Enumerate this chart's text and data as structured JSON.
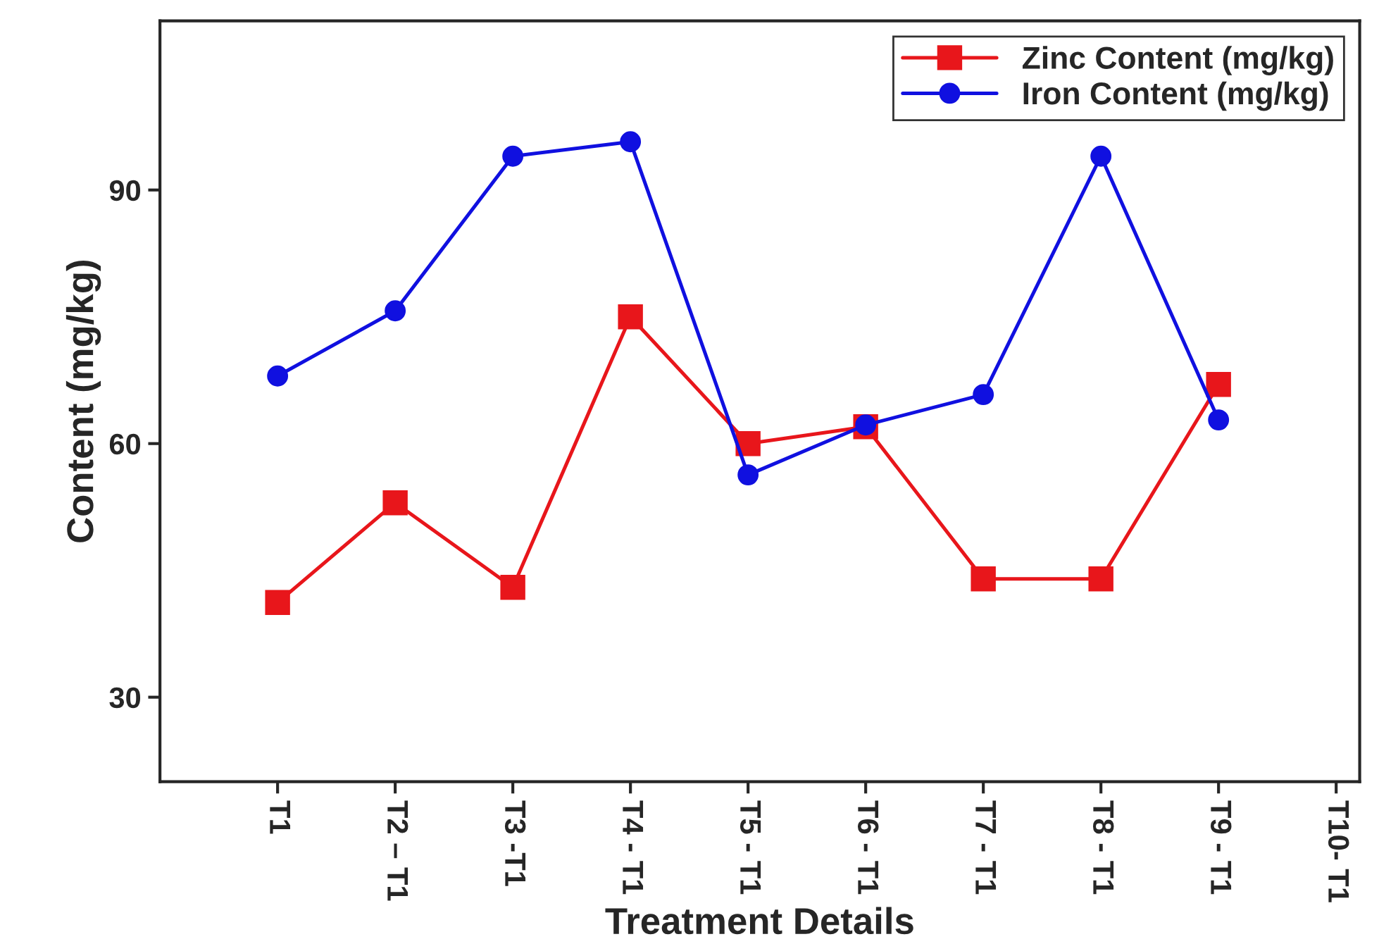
{
  "chart_data": {
    "type": "line",
    "xlabel": "Treatment Details",
    "ylabel": "Content (mg/kg)",
    "categories": [
      "T1",
      "T2 – T1",
      "T3 -T1",
      "T4 - T1",
      "T5 - T1",
      "T6 - T1",
      "T7 - T1",
      "T8 - T1",
      "T9 - T1",
      "T10- T1"
    ],
    "series": [
      {
        "name": "Zinc Content (mg/kg)",
        "color": "#e8161b",
        "marker": "square",
        "values": [
          41.2,
          53,
          43,
          75,
          60,
          62,
          44,
          44,
          67,
          null
        ]
      },
      {
        "name": "Iron Content (mg/kg)",
        "color": "#1010e0",
        "marker": "circle",
        "values": [
          68,
          75.7,
          94,
          95.7,
          56.3,
          62.2,
          65.8,
          94,
          62.8,
          null
        ]
      }
    ],
    "ylim": [
      20,
      110
    ],
    "yticks": [
      30,
      60,
      90
    ],
    "grid": false,
    "legend": "top right",
    "line_style": "solid"
  }
}
